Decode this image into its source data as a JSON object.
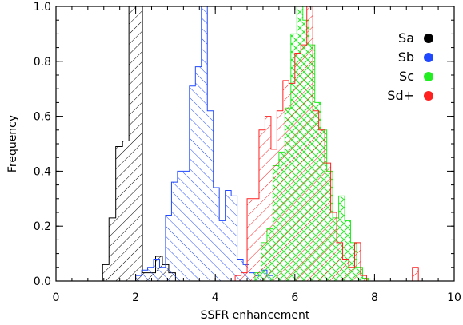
{
  "chart_data": {
    "type": "histogram",
    "xlabel": "SSFR enhancement",
    "ylabel": "Frequency",
    "xlim": [
      0,
      10
    ],
    "ylim": [
      0,
      1.0
    ],
    "xticks": [
      0,
      2,
      4,
      6,
      8,
      10
    ],
    "yticks": [
      0.0,
      0.2,
      0.4,
      0.6,
      0.8,
      1.0
    ],
    "xtick_labels": [
      "0",
      "2",
      "4",
      "6",
      "8",
      "10"
    ],
    "ytick_labels": [
      "0.0",
      "0.2",
      "0.4",
      "0.6",
      "0.8",
      "1.0"
    ],
    "grid": false,
    "legend_position": "top-right",
    "series": [
      {
        "name": "Sa",
        "color": "#000000",
        "hatch": "forward",
        "bins": [
          {
            "x0": 1.17,
            "x1": 1.33,
            "y": 0.06
          },
          {
            "x0": 1.33,
            "x1": 1.5,
            "y": 0.23
          },
          {
            "x0": 1.5,
            "x1": 1.67,
            "y": 0.49
          },
          {
            "x0": 1.67,
            "x1": 1.83,
            "y": 0.51
          },
          {
            "x0": 1.83,
            "x1": 2.0,
            "y": 1.0
          },
          {
            "x0": 2.0,
            "x1": 2.17,
            "y": 1.0
          },
          {
            "x0": 2.17,
            "x1": 2.33,
            "y": 0.03
          },
          {
            "x0": 2.33,
            "x1": 2.5,
            "y": 0.03
          },
          {
            "x0": 2.5,
            "x1": 2.67,
            "y": 0.09
          },
          {
            "x0": 2.67,
            "x1": 2.83,
            "y": 0.06
          },
          {
            "x0": 2.83,
            "x1": 3.0,
            "y": 0.03
          }
        ]
      },
      {
        "name": "Sb",
        "color": "#1f48ff",
        "hatch": "back",
        "bins": [
          {
            "x0": 2.0,
            "x1": 2.15,
            "y": 0.02
          },
          {
            "x0": 2.15,
            "x1": 2.3,
            "y": 0.04
          },
          {
            "x0": 2.3,
            "x1": 2.45,
            "y": 0.05
          },
          {
            "x0": 2.45,
            "x1": 2.6,
            "y": 0.08
          },
          {
            "x0": 2.6,
            "x1": 2.75,
            "y": 0.05
          },
          {
            "x0": 2.75,
            "x1": 2.9,
            "y": 0.24
          },
          {
            "x0": 2.9,
            "x1": 3.05,
            "y": 0.36
          },
          {
            "x0": 3.05,
            "x1": 3.2,
            "y": 0.4
          },
          {
            "x0": 3.2,
            "x1": 3.35,
            "y": 0.4
          },
          {
            "x0": 3.35,
            "x1": 3.5,
            "y": 0.71
          },
          {
            "x0": 3.5,
            "x1": 3.65,
            "y": 0.78
          },
          {
            "x0": 3.65,
            "x1": 3.8,
            "y": 1.0
          },
          {
            "x0": 3.8,
            "x1": 3.95,
            "y": 0.62
          },
          {
            "x0": 3.95,
            "x1": 4.1,
            "y": 0.34
          },
          {
            "x0": 4.1,
            "x1": 4.25,
            "y": 0.22
          },
          {
            "x0": 4.25,
            "x1": 4.4,
            "y": 0.33
          },
          {
            "x0": 4.4,
            "x1": 4.55,
            "y": 0.31
          },
          {
            "x0": 4.55,
            "x1": 4.7,
            "y": 0.08
          },
          {
            "x0": 4.7,
            "x1": 4.85,
            "y": 0.06
          },
          {
            "x0": 4.85,
            "x1": 5.0,
            "y": 0.03
          },
          {
            "x0": 5.0,
            "x1": 5.15,
            "y": 0.02
          },
          {
            "x0": 5.15,
            "x1": 5.3,
            "y": 0.04
          },
          {
            "x0": 5.3,
            "x1": 5.45,
            "y": 0.02
          }
        ]
      },
      {
        "name": "Sc",
        "color": "#22ee22",
        "hatch": "cross",
        "bins": [
          {
            "x0": 5.0,
            "x1": 5.15,
            "y": 0.03
          },
          {
            "x0": 5.15,
            "x1": 5.3,
            "y": 0.14
          },
          {
            "x0": 5.3,
            "x1": 5.45,
            "y": 0.19
          },
          {
            "x0": 5.45,
            "x1": 5.6,
            "y": 0.42
          },
          {
            "x0": 5.6,
            "x1": 5.75,
            "y": 0.47
          },
          {
            "x0": 5.75,
            "x1": 5.9,
            "y": 0.63
          },
          {
            "x0": 5.9,
            "x1": 6.05,
            "y": 0.9
          },
          {
            "x0": 6.05,
            "x1": 6.2,
            "y": 1.0
          },
          {
            "x0": 6.2,
            "x1": 6.35,
            "y": 0.95
          },
          {
            "x0": 6.35,
            "x1": 6.5,
            "y": 0.86
          },
          {
            "x0": 6.5,
            "x1": 6.65,
            "y": 0.65
          },
          {
            "x0": 6.65,
            "x1": 6.8,
            "y": 0.55
          },
          {
            "x0": 6.8,
            "x1": 6.95,
            "y": 0.4
          },
          {
            "x0": 6.95,
            "x1": 7.1,
            "y": 0.23
          },
          {
            "x0": 7.1,
            "x1": 7.25,
            "y": 0.31
          },
          {
            "x0": 7.25,
            "x1": 7.4,
            "y": 0.22
          },
          {
            "x0": 7.4,
            "x1": 7.55,
            "y": 0.14
          },
          {
            "x0": 7.55,
            "x1": 7.7,
            "y": 0.05
          },
          {
            "x0": 7.7,
            "x1": 7.85,
            "y": 0.01
          }
        ]
      },
      {
        "name": "Sd+",
        "color": "#ff2020",
        "hatch": "forward",
        "bins": [
          {
            "x0": 4.5,
            "x1": 4.65,
            "y": 0.02
          },
          {
            "x0": 4.65,
            "x1": 4.8,
            "y": 0.03
          },
          {
            "x0": 4.8,
            "x1": 4.95,
            "y": 0.3
          },
          {
            "x0": 4.95,
            "x1": 5.1,
            "y": 0.3
          },
          {
            "x0": 5.1,
            "x1": 5.25,
            "y": 0.55
          },
          {
            "x0": 5.25,
            "x1": 5.4,
            "y": 0.6
          },
          {
            "x0": 5.4,
            "x1": 5.55,
            "y": 0.48
          },
          {
            "x0": 5.55,
            "x1": 5.7,
            "y": 0.62
          },
          {
            "x0": 5.7,
            "x1": 5.85,
            "y": 0.73
          },
          {
            "x0": 5.85,
            "x1": 6.0,
            "y": 0.72
          },
          {
            "x0": 6.0,
            "x1": 6.15,
            "y": 0.83
          },
          {
            "x0": 6.15,
            "x1": 6.3,
            "y": 0.86
          },
          {
            "x0": 6.3,
            "x1": 6.45,
            "y": 1.0
          },
          {
            "x0": 6.45,
            "x1": 6.6,
            "y": 0.62
          },
          {
            "x0": 6.6,
            "x1": 6.75,
            "y": 0.55
          },
          {
            "x0": 6.75,
            "x1": 6.9,
            "y": 0.43
          },
          {
            "x0": 6.9,
            "x1": 7.05,
            "y": 0.25
          },
          {
            "x0": 7.05,
            "x1": 7.2,
            "y": 0.14
          },
          {
            "x0": 7.2,
            "x1": 7.35,
            "y": 0.08
          },
          {
            "x0": 7.35,
            "x1": 7.5,
            "y": 0.05
          },
          {
            "x0": 7.5,
            "x1": 7.65,
            "y": 0.14
          },
          {
            "x0": 7.65,
            "x1": 7.8,
            "y": 0.02
          },
          {
            "x0": 8.95,
            "x1": 9.1,
            "y": 0.05
          }
        ]
      }
    ]
  }
}
